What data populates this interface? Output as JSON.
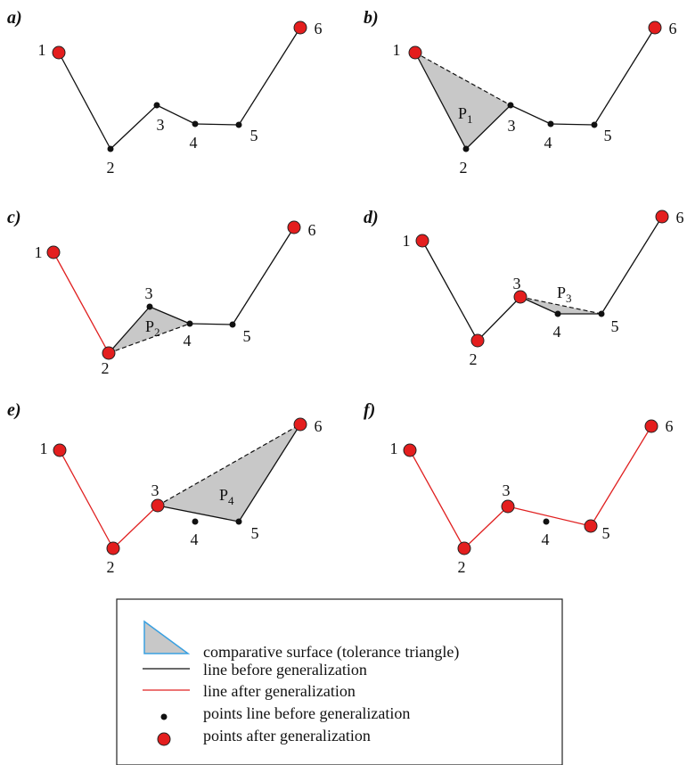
{
  "panels": [
    {
      "label": "a)",
      "point_labels": [
        "1",
        "2",
        "3",
        "4",
        "5",
        "6"
      ]
    },
    {
      "label": "b)",
      "point_labels": [
        "1",
        "2",
        "3",
        "4",
        "5",
        "6"
      ],
      "triangle": {
        "letter": "P",
        "index": "1"
      }
    },
    {
      "label": "c)",
      "point_labels": [
        "1",
        "2",
        "3",
        "4",
        "5",
        "6"
      ],
      "triangle": {
        "letter": "P",
        "index": "2"
      }
    },
    {
      "label": "d)",
      "point_labels": [
        "1",
        "2",
        "3",
        "4",
        "5",
        "6"
      ],
      "triangle": {
        "letter": "P",
        "index": "3"
      }
    },
    {
      "label": "e)",
      "point_labels": [
        "1",
        "2",
        "3",
        "4",
        "5",
        "6"
      ],
      "triangle": {
        "letter": "P",
        "index": "4"
      }
    },
    {
      "label": "f)",
      "point_labels": [
        "1",
        "2",
        "3",
        "4",
        "5",
        "6"
      ]
    }
  ],
  "legend": {
    "items": [
      "comparative surface (tolerance triangle)",
      "line before generalization",
      "line after generalization",
      "points line before generalization",
      "points after generalization"
    ]
  }
}
